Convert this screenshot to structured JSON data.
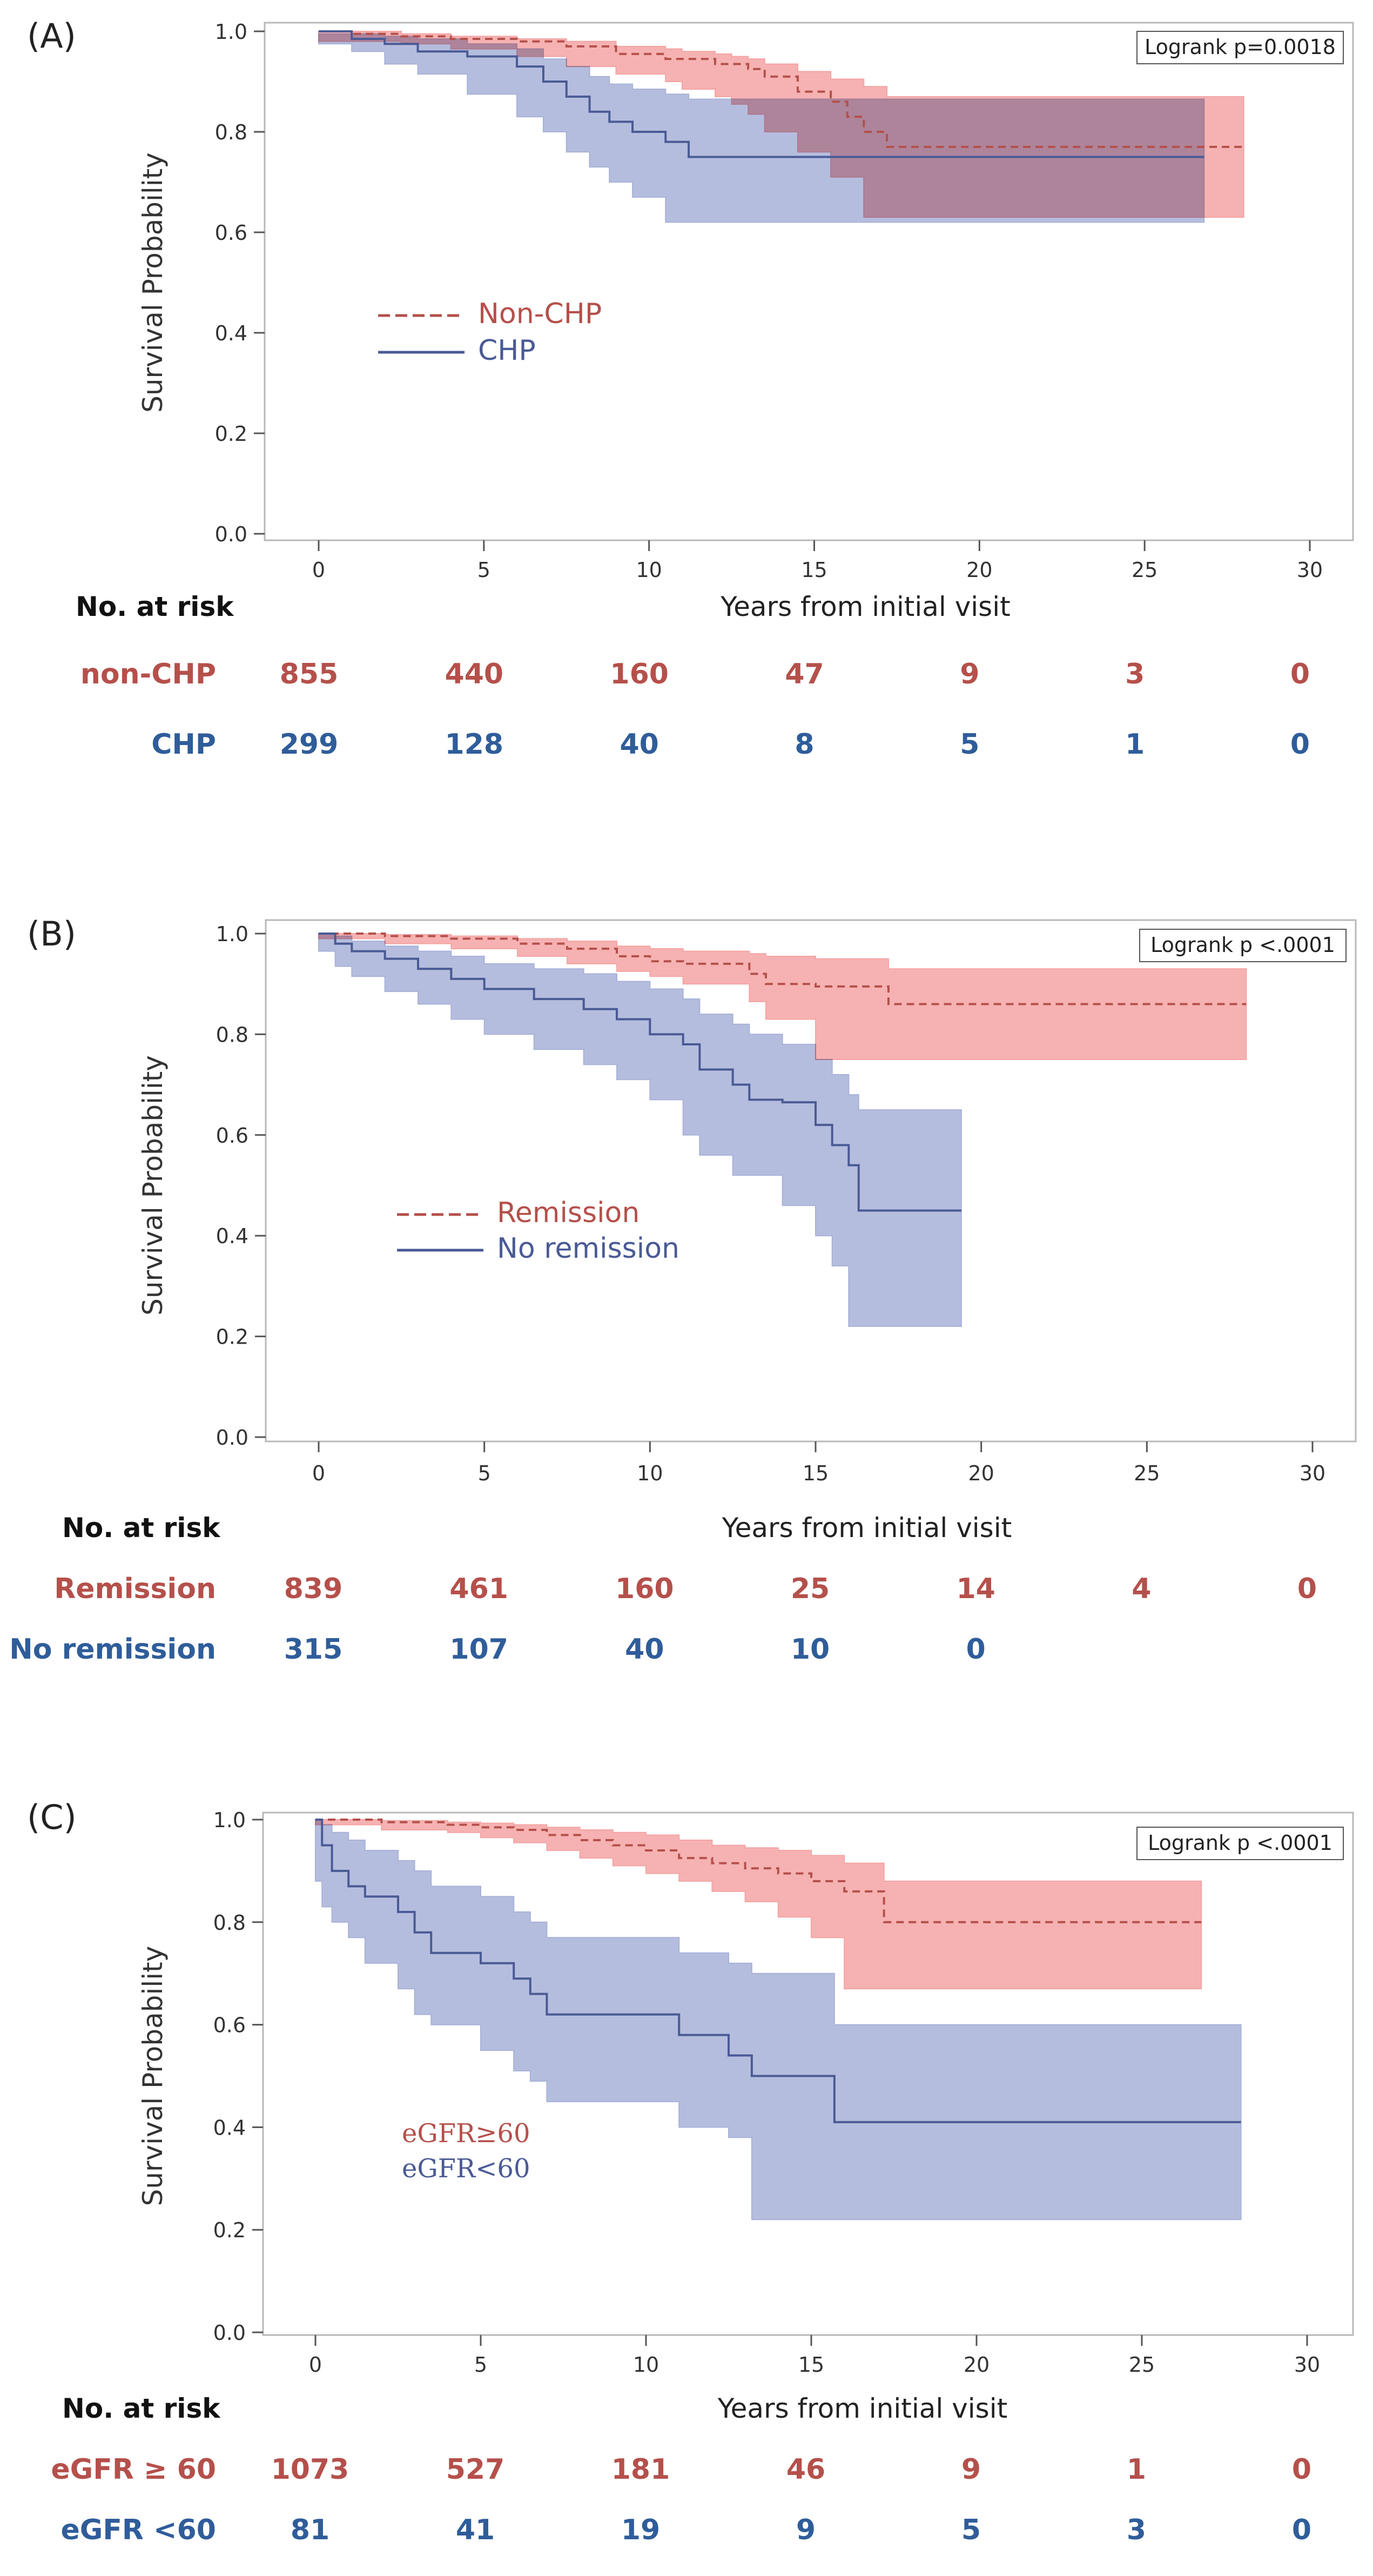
{
  "figure": {
    "colors": {
      "group1_line": "#b5504b",
      "group1_band": "#f4a4a4",
      "group2_line": "#4a5a95",
      "group2_band": "#a8b2d8",
      "risk_group1_text": "#b5504b",
      "risk_group2_text": "#2f5d9a",
      "axis": "#555555",
      "frame": "#b8b8b8"
    }
  },
  "chart_data": [
    {
      "type": "line",
      "panel_label": "(A)",
      "ylabel": "Survival Probability",
      "xlabel": "Years from initial visit",
      "xlim": [
        0,
        30
      ],
      "ylim": [
        0,
        1
      ],
      "xticks": [
        "0",
        "5",
        "10",
        "15",
        "20",
        "25",
        "30"
      ],
      "yticks": [
        "0.0",
        "0.2",
        "0.4",
        "0.6",
        "0.8",
        "1.0"
      ],
      "pvalue_text": "Logrank p=0.0018",
      "legend_font": "sans",
      "series": [
        {
          "name": "Non-CHP",
          "dashed": true,
          "step": [
            [
              0,
              1.0
            ],
            [
              1,
              0.995
            ],
            [
              2.5,
              0.99
            ],
            [
              4,
              0.985
            ],
            [
              6,
              0.98
            ],
            [
              7.5,
              0.97
            ],
            [
              9,
              0.955
            ],
            [
              10.5,
              0.945
            ],
            [
              12,
              0.935
            ],
            [
              13,
              0.925
            ],
            [
              13.5,
              0.91
            ],
            [
              14.5,
              0.88
            ],
            [
              15.5,
              0.86
            ],
            [
              16,
              0.83
            ],
            [
              16.5,
              0.8
            ],
            [
              17.2,
              0.77
            ],
            [
              28,
              0.77
            ]
          ],
          "band": [
            [
              0,
              1.0,
              1.0
            ],
            [
              2.5,
              0.995,
              0.98
            ],
            [
              4,
              0.99,
              0.975
            ],
            [
              6,
              0.985,
              0.965
            ],
            [
              7.5,
              0.98,
              0.95
            ],
            [
              9,
              0.97,
              0.93
            ],
            [
              10.5,
              0.965,
              0.915
            ],
            [
              11,
              0.96,
              0.9
            ],
            [
              12,
              0.955,
              0.885
            ],
            [
              12.5,
              0.95,
              0.87
            ],
            [
              13,
              0.945,
              0.855
            ],
            [
              13.5,
              0.935,
              0.835
            ],
            [
              14.5,
              0.92,
              0.8
            ],
            [
              15.5,
              0.905,
              0.76
            ],
            [
              16.5,
              0.89,
              0.71
            ],
            [
              17.2,
              0.87,
              0.63
            ],
            [
              28,
              0.87,
              0.63
            ]
          ]
        },
        {
          "name": "CHP",
          "dashed": false,
          "step": [
            [
              0,
              1.0
            ],
            [
              1,
              0.985
            ],
            [
              2,
              0.975
            ],
            [
              3,
              0.96
            ],
            [
              4.5,
              0.95
            ],
            [
              6,
              0.93
            ],
            [
              6.8,
              0.9
            ],
            [
              7.5,
              0.87
            ],
            [
              8.2,
              0.84
            ],
            [
              8.8,
              0.82
            ],
            [
              9.5,
              0.8
            ],
            [
              10.5,
              0.78
            ],
            [
              11.2,
              0.75
            ],
            [
              26.8,
              0.75
            ]
          ],
          "band": [
            [
              0,
              0.995,
              0.995
            ],
            [
              1,
              0.995,
              0.975
            ],
            [
              2,
              0.99,
              0.96
            ],
            [
              3,
              0.985,
              0.935
            ],
            [
              4.5,
              0.975,
              0.915
            ],
            [
              6,
              0.965,
              0.875
            ],
            [
              6.8,
              0.945,
              0.83
            ],
            [
              7.5,
              0.93,
              0.8
            ],
            [
              8.2,
              0.91,
              0.76
            ],
            [
              8.8,
              0.895,
              0.73
            ],
            [
              9.5,
              0.885,
              0.7
            ],
            [
              10.5,
              0.875,
              0.67
            ],
            [
              11.2,
              0.865,
              0.62
            ],
            [
              26.8,
              0.865,
              0.62
            ]
          ]
        }
      ],
      "risk_table": {
        "header": "No. at risk",
        "rows": [
          {
            "label": "non-CHP",
            "values": [
              "855",
              "440",
              "160",
              "47",
              "9",
              "3",
              "0"
            ]
          },
          {
            "label": "CHP",
            "values": [
              "299",
              "128",
              "40",
              "8",
              "5",
              "1",
              "0"
            ]
          }
        ]
      }
    },
    {
      "type": "line",
      "panel_label": "(B)",
      "ylabel": "Survival Probability",
      "xlabel": "Years from initial visit",
      "xlim": [
        0,
        30
      ],
      "ylim": [
        0,
        1
      ],
      "xticks": [
        "0",
        "5",
        "10",
        "15",
        "20",
        "25",
        "30"
      ],
      "yticks": [
        "0.0",
        "0.2",
        "0.4",
        "0.6",
        "0.8",
        "1.0"
      ],
      "pvalue_text": "Logrank p <.0001",
      "legend_font": "sans",
      "series": [
        {
          "name": "Remission",
          "dashed": true,
          "step": [
            [
              0,
              1.0
            ],
            [
              2,
              0.995
            ],
            [
              4,
              0.99
            ],
            [
              6,
              0.98
            ],
            [
              7.5,
              0.97
            ],
            [
              9,
              0.955
            ],
            [
              10,
              0.945
            ],
            [
              11,
              0.94
            ],
            [
              13,
              0.92
            ],
            [
              13.5,
              0.9
            ],
            [
              15,
              0.895
            ],
            [
              17.2,
              0.86
            ],
            [
              28,
              0.86
            ]
          ],
          "band": [
            [
              0,
              1.0,
              1.0
            ],
            [
              2,
              0.998,
              0.99
            ],
            [
              4,
              0.995,
              0.98
            ],
            [
              6,
              0.99,
              0.97
            ],
            [
              7.5,
              0.985,
              0.955
            ],
            [
              9,
              0.975,
              0.94
            ],
            [
              10,
              0.97,
              0.925
            ],
            [
              11,
              0.965,
              0.915
            ],
            [
              13,
              0.96,
              0.9
            ],
            [
              13.5,
              0.955,
              0.865
            ],
            [
              15,
              0.95,
              0.83
            ],
            [
              17.2,
              0.93,
              0.75
            ],
            [
              28,
              0.93,
              0.75
            ]
          ]
        },
        {
          "name": "No remission",
          "dashed": false,
          "step": [
            [
              0,
              1.0
            ],
            [
              0.5,
              0.98
            ],
            [
              1,
              0.965
            ],
            [
              2,
              0.95
            ],
            [
              3,
              0.93
            ],
            [
              4,
              0.91
            ],
            [
              5,
              0.89
            ],
            [
              6.5,
              0.87
            ],
            [
              8,
              0.85
            ],
            [
              9,
              0.83
            ],
            [
              10,
              0.8
            ],
            [
              11,
              0.78
            ],
            [
              11.5,
              0.73
            ],
            [
              12.5,
              0.7
            ],
            [
              13,
              0.67
            ],
            [
              14,
              0.665
            ],
            [
              15,
              0.62
            ],
            [
              15.5,
              0.58
            ],
            [
              16,
              0.54
            ],
            [
              16.3,
              0.45
            ],
            [
              19.4,
              0.45
            ]
          ],
          "band": [
            [
              0,
              1.0,
              1.0
            ],
            [
              0.5,
              0.995,
              0.965
            ],
            [
              1,
              0.985,
              0.935
            ],
            [
              2,
              0.975,
              0.915
            ],
            [
              3,
              0.965,
              0.885
            ],
            [
              4,
              0.955,
              0.86
            ],
            [
              5,
              0.94,
              0.83
            ],
            [
              6.5,
              0.93,
              0.8
            ],
            [
              8,
              0.92,
              0.77
            ],
            [
              9,
              0.905,
              0.74
            ],
            [
              10,
              0.89,
              0.71
            ],
            [
              11,
              0.87,
              0.67
            ],
            [
              11.5,
              0.84,
              0.6
            ],
            [
              12.5,
              0.82,
              0.56
            ],
            [
              13,
              0.8,
              0.52
            ],
            [
              14,
              0.78,
              0.52
            ],
            [
              15,
              0.75,
              0.46
            ],
            [
              15.5,
              0.72,
              0.4
            ],
            [
              16,
              0.68,
              0.34
            ],
            [
              16.3,
              0.65,
              0.22
            ],
            [
              19.4,
              0.65,
              0.22
            ]
          ]
        }
      ],
      "risk_table": {
        "header": "No. at risk",
        "rows": [
          {
            "label": "Remission",
            "values": [
              "839",
              "461",
              "160",
              "25",
              "14",
              "4",
              "0"
            ]
          },
          {
            "label": "No remission",
            "values": [
              "315",
              "107",
              "40",
              "10",
              "0",
              "",
              ""
            ]
          }
        ]
      }
    },
    {
      "type": "line",
      "panel_label": "(C)",
      "ylabel": "Survival Probability",
      "xlabel": "Years from initial visit",
      "xlim": [
        0,
        30
      ],
      "ylim": [
        0,
        1
      ],
      "xticks": [
        "0",
        "5",
        "10",
        "15",
        "20",
        "25",
        "30"
      ],
      "yticks": [
        "0.0",
        "0.2",
        "0.4",
        "0.6",
        "0.8",
        "1.0"
      ],
      "pvalue_text": "Logrank p <.0001",
      "legend_font": "serif",
      "series": [
        {
          "name": "eGFR≥60",
          "dashed": true,
          "step": [
            [
              0,
              1.0
            ],
            [
              2,
              0.995
            ],
            [
              4,
              0.99
            ],
            [
              5,
              0.985
            ],
            [
              6,
              0.98
            ],
            [
              7,
              0.97
            ],
            [
              8,
              0.96
            ],
            [
              9,
              0.95
            ],
            [
              10,
              0.94
            ],
            [
              11,
              0.925
            ],
            [
              12,
              0.915
            ],
            [
              13,
              0.905
            ],
            [
              14,
              0.895
            ],
            [
              15,
              0.88
            ],
            [
              16,
              0.86
            ],
            [
              17.2,
              0.8
            ],
            [
              26.8,
              0.8
            ]
          ],
          "band": [
            [
              0,
              1.0,
              1.0
            ],
            [
              2,
              0.998,
              0.99
            ],
            [
              4,
              0.995,
              0.98
            ],
            [
              5,
              0.993,
              0.975
            ],
            [
              6,
              0.99,
              0.965
            ],
            [
              7,
              0.985,
              0.955
            ],
            [
              8,
              0.98,
              0.94
            ],
            [
              9,
              0.975,
              0.925
            ],
            [
              10,
              0.97,
              0.91
            ],
            [
              11,
              0.96,
              0.895
            ],
            [
              12,
              0.95,
              0.88
            ],
            [
              13,
              0.945,
              0.86
            ],
            [
              14,
              0.94,
              0.84
            ],
            [
              15,
              0.93,
              0.81
            ],
            [
              16,
              0.915,
              0.77
            ],
            [
              17.2,
              0.88,
              0.67
            ],
            [
              26.8,
              0.88,
              0.67
            ]
          ]
        },
        {
          "name": "eGFR<60",
          "dashed": false,
          "step": [
            [
              0,
              1.0
            ],
            [
              0.2,
              0.95
            ],
            [
              0.5,
              0.9
            ],
            [
              1,
              0.87
            ],
            [
              1.5,
              0.85
            ],
            [
              2.5,
              0.82
            ],
            [
              3,
              0.78
            ],
            [
              3.5,
              0.74
            ],
            [
              5,
              0.72
            ],
            [
              6,
              0.69
            ],
            [
              6.5,
              0.66
            ],
            [
              7,
              0.62
            ],
            [
              11,
              0.58
            ],
            [
              12.5,
              0.54
            ],
            [
              13.2,
              0.5
            ],
            [
              15.7,
              0.41
            ],
            [
              28,
              0.41
            ]
          ],
          "band": [
            [
              0,
              1.0,
              1.0
            ],
            [
              0.2,
              0.99,
              0.88
            ],
            [
              0.5,
              0.975,
              0.83
            ],
            [
              1,
              0.96,
              0.8
            ],
            [
              1.5,
              0.94,
              0.77
            ],
            [
              2.5,
              0.92,
              0.72
            ],
            [
              3,
              0.9,
              0.67
            ],
            [
              3.5,
              0.87,
              0.62
            ],
            [
              5,
              0.85,
              0.6
            ],
            [
              6,
              0.82,
              0.55
            ],
            [
              6.5,
              0.8,
              0.51
            ],
            [
              7,
              0.77,
              0.49
            ],
            [
              11,
              0.74,
              0.45
            ],
            [
              12.5,
              0.72,
              0.4
            ],
            [
              13.2,
              0.7,
              0.38
            ],
            [
              15.7,
              0.6,
              0.22
            ],
            [
              28,
              0.6,
              0.22
            ]
          ]
        }
      ],
      "risk_table": {
        "header": "No. at risk",
        "rows": [
          {
            "label": "eGFR ≥ 60",
            "values": [
              "1073",
              "527",
              "181",
              "46",
              "9",
              "1",
              "0"
            ]
          },
          {
            "label": "eGFR <60",
            "values": [
              "81",
              "41",
              "19",
              "9",
              "5",
              "3",
              "0"
            ]
          }
        ]
      }
    }
  ]
}
